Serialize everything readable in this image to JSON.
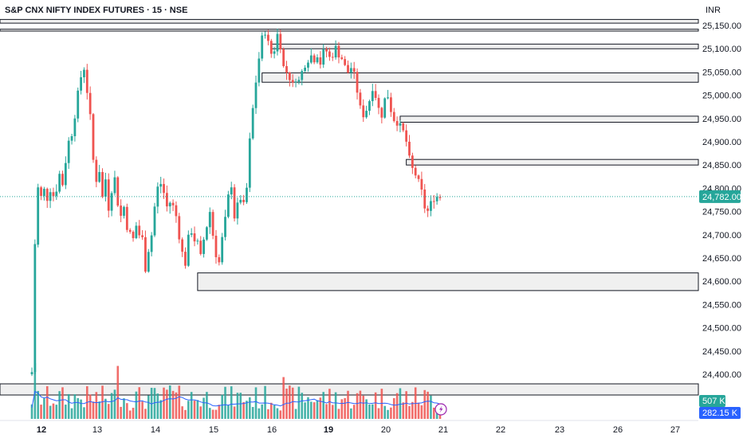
{
  "header": {
    "title": "S&P CNX NIFTY INDEX FUTURES · 15 · NSE",
    "currency": "INR"
  },
  "colors": {
    "up": "#26a69a",
    "down": "#ef5350",
    "last_price_badge": "#26a69a",
    "volume_badge": "#26a69a",
    "volume_ma_badge": "#2962ff",
    "volume_ma_line": "#2962ff",
    "zone_fill": "#f0f0f0",
    "zone_stroke": "#131722",
    "axis_text": "#131722",
    "last_price_line": "#26a69a",
    "lightning_icon": "#9c27b0"
  },
  "chart_data": {
    "type": "candlestick",
    "timeframe": "15",
    "x_tick_labels": [
      "12",
      "13",
      "14",
      "15",
      "16",
      "19",
      "20",
      "21",
      "22",
      "23",
      "26",
      "27"
    ],
    "x_tick_bold": [
      "12",
      "19"
    ],
    "y_tick_labels": [
      "25,150.00",
      "25,100.00",
      "25,050.00",
      "25,000.00",
      "24,950.00",
      "24,900.00",
      "24,850.00",
      "24,800.00",
      "24,750.00",
      "24,700.00",
      "24,650.00",
      "24,600.00",
      "24,550.00",
      "24,500.00",
      "24,450.00",
      "24,400.00"
    ],
    "y_ticks": [
      25150,
      25100,
      25050,
      25000,
      24950,
      24900,
      24850,
      24800,
      24750,
      24700,
      24650,
      24600,
      24550,
      24500,
      24450,
      24400
    ],
    "ylim": [
      24380,
      25165
    ],
    "last_price": 24782,
    "last_price_label": "24,782.00",
    "volume_label": "507 K",
    "volume_ma_label": "282.15 K",
    "close_path": [
      [
        0,
        24405
      ],
      [
        1,
        24680
      ],
      [
        2,
        24800
      ],
      [
        3,
        24780
      ],
      [
        4,
        24795
      ],
      [
        5,
        24780
      ],
      [
        6,
        24800
      ],
      [
        7,
        24785
      ],
      [
        8,
        24800
      ],
      [
        9,
        24830
      ],
      [
        10,
        24810
      ],
      [
        11,
        24860
      ],
      [
        12,
        24900
      ],
      [
        13,
        24920
      ],
      [
        14,
        24960
      ],
      [
        15,
        25000
      ],
      [
        16,
        25040
      ],
      [
        17,
        25060
      ],
      [
        18,
        25010
      ],
      [
        19,
        24950
      ],
      [
        20,
        24860
      ],
      [
        21,
        24820
      ],
      [
        22,
        24840
      ],
      [
        23,
        24780
      ],
      [
        24,
        24820
      ],
      [
        25,
        24760
      ],
      [
        26,
        24800
      ],
      [
        27,
        24820
      ],
      [
        28,
        24770
      ],
      [
        29,
        24740
      ],
      [
        30,
        24760
      ],
      [
        31,
        24720
      ],
      [
        32,
        24700
      ],
      [
        33,
        24690
      ],
      [
        34,
        24720
      ],
      [
        35,
        24700
      ],
      [
        36,
        24690
      ],
      [
        37,
        24630
      ],
      [
        38,
        24670
      ],
      [
        39,
        24700
      ],
      [
        40,
        24760
      ],
      [
        41,
        24800
      ],
      [
        42,
        24810
      ],
      [
        43,
        24790
      ],
      [
        44,
        24760
      ],
      [
        45,
        24770
      ],
      [
        46,
        24760
      ],
      [
        47,
        24740
      ],
      [
        48,
        24700
      ],
      [
        49,
        24660
      ],
      [
        50,
        24640
      ],
      [
        51,
        24690
      ],
      [
        52,
        24710
      ],
      [
        53,
        24690
      ],
      [
        54,
        24680
      ],
      [
        55,
        24650
      ],
      [
        56,
        24690
      ],
      [
        57,
        24720
      ],
      [
        58,
        24750
      ],
      [
        59,
        24700
      ],
      [
        60,
        24660
      ],
      [
        61,
        24640
      ],
      [
        62,
        24690
      ],
      [
        63,
        24730
      ],
      [
        64,
        24780
      ],
      [
        65,
        24810
      ],
      [
        66,
        24740
      ],
      [
        67,
        24760
      ],
      [
        68,
        24780
      ],
      [
        69,
        24760
      ],
      [
        70,
        24800
      ],
      [
        71,
        24900
      ],
      [
        72,
        24970
      ],
      [
        73,
        25030
      ],
      [
        74,
        25080
      ],
      [
        75,
        25120
      ],
      [
        76,
        25140
      ],
      [
        77,
        25110
      ],
      [
        78,
        25090
      ],
      [
        79,
        25100
      ],
      [
        80,
        25130
      ],
      [
        81,
        25110
      ],
      [
        82,
        25060
      ],
      [
        83,
        25050
      ],
      [
        84,
        25040
      ],
      [
        85,
        25020
      ],
      [
        86,
        25040
      ],
      [
        87,
        25030
      ],
      [
        88,
        25050
      ],
      [
        89,
        25070
      ],
      [
        90,
        25080
      ],
      [
        91,
        25085
      ],
      [
        92,
        25080
      ],
      [
        93,
        25090
      ],
      [
        94,
        25070
      ],
      [
        95,
        25090
      ],
      [
        96,
        25095
      ],
      [
        97,
        25080
      ],
      [
        98,
        25090
      ],
      [
        99,
        25100
      ],
      [
        100,
        25090
      ],
      [
        101,
        25080
      ],
      [
        102,
        25060
      ],
      [
        103,
        25050
      ],
      [
        104,
        25060
      ],
      [
        105,
        25040
      ],
      [
        106,
        25010
      ],
      [
        107,
        24970
      ],
      [
        108,
        24960
      ],
      [
        109,
        24970
      ],
      [
        110,
        24990
      ],
      [
        111,
        25020
      ],
      [
        112,
        25000
      ],
      [
        113,
        24970
      ],
      [
        114,
        24960
      ],
      [
        115,
        24990
      ],
      [
        116,
        25000
      ],
      [
        117,
        24970
      ],
      [
        118,
        24950
      ],
      [
        119,
        24945
      ],
      [
        120,
        24930
      ],
      [
        121,
        24920
      ],
      [
        122,
        24900
      ],
      [
        123,
        24860
      ],
      [
        124,
        24840
      ],
      [
        125,
        24830
      ],
      [
        126,
        24810
      ],
      [
        127,
        24790
      ],
      [
        128,
        24760
      ],
      [
        129,
        24750
      ],
      [
        130,
        24765
      ],
      [
        131,
        24782
      ]
    ],
    "zones": [
      {
        "top": 25163,
        "bottom": 25155,
        "start": 0
      },
      {
        "top": 25142,
        "bottom": 25138,
        "start": 0
      },
      {
        "top": 25110,
        "bottom": 25100,
        "start": 78
      },
      {
        "top": 25048,
        "bottom": 25028,
        "start": 75
      },
      {
        "top": 24955,
        "bottom": 24942,
        "start": 120
      },
      {
        "top": 24862,
        "bottom": 24850,
        "start": 122
      },
      {
        "top": 24618,
        "bottom": 24580,
        "start": 54
      }
    ],
    "volume_zone": {
      "top_fraction": 0.18,
      "bottom_fraction": 0.62
    }
  }
}
